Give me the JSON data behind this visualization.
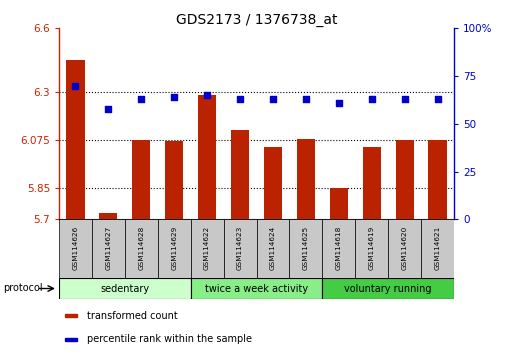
{
  "title": "GDS2173 / 1376738_at",
  "samples": [
    "GSM114626",
    "GSM114627",
    "GSM114628",
    "GSM114629",
    "GSM114622",
    "GSM114623",
    "GSM114624",
    "GSM114625",
    "GSM114618",
    "GSM114619",
    "GSM114620",
    "GSM114621"
  ],
  "transformed_count": [
    6.45,
    5.73,
    6.075,
    6.07,
    6.285,
    6.12,
    6.04,
    6.08,
    5.85,
    6.04,
    6.075,
    6.075
  ],
  "percentile_rank": [
    70,
    58,
    63,
    64,
    65,
    63,
    63,
    63,
    61,
    63,
    63,
    63
  ],
  "ylim_left": [
    5.7,
    6.6
  ],
  "ylim_right": [
    0,
    100
  ],
  "yticks_left": [
    5.7,
    5.85,
    6.075,
    6.3,
    6.6
  ],
  "yticks_left_labels": [
    "5.7",
    "5.85",
    "6.075",
    "6.3",
    "6.6"
  ],
  "yticks_right": [
    0,
    25,
    50,
    75,
    100
  ],
  "yticks_right_labels": [
    "0",
    "25",
    "50",
    "75",
    "100%"
  ],
  "hlines": [
    5.85,
    6.075,
    6.3
  ],
  "bar_color": "#BB2200",
  "dot_color": "#0000CC",
  "bar_bottom": 5.7,
  "groups": [
    {
      "label": "sedentary",
      "start": 0,
      "end": 4,
      "color": "#CCFFCC"
    },
    {
      "label": "twice a week activity",
      "start": 4,
      "end": 8,
      "color": "#88EE88"
    },
    {
      "label": "voluntary running",
      "start": 8,
      "end": 12,
      "color": "#44CC44"
    }
  ],
  "legend_items": [
    {
      "label": "transformed count",
      "color": "#BB2200"
    },
    {
      "label": "percentile rank within the sample",
      "color": "#0000CC"
    }
  ],
  "left_axis_color": "#CC2200",
  "right_axis_color": "#0000CC",
  "protocol_label": "protocol",
  "sample_box_color": "#C8C8C8"
}
